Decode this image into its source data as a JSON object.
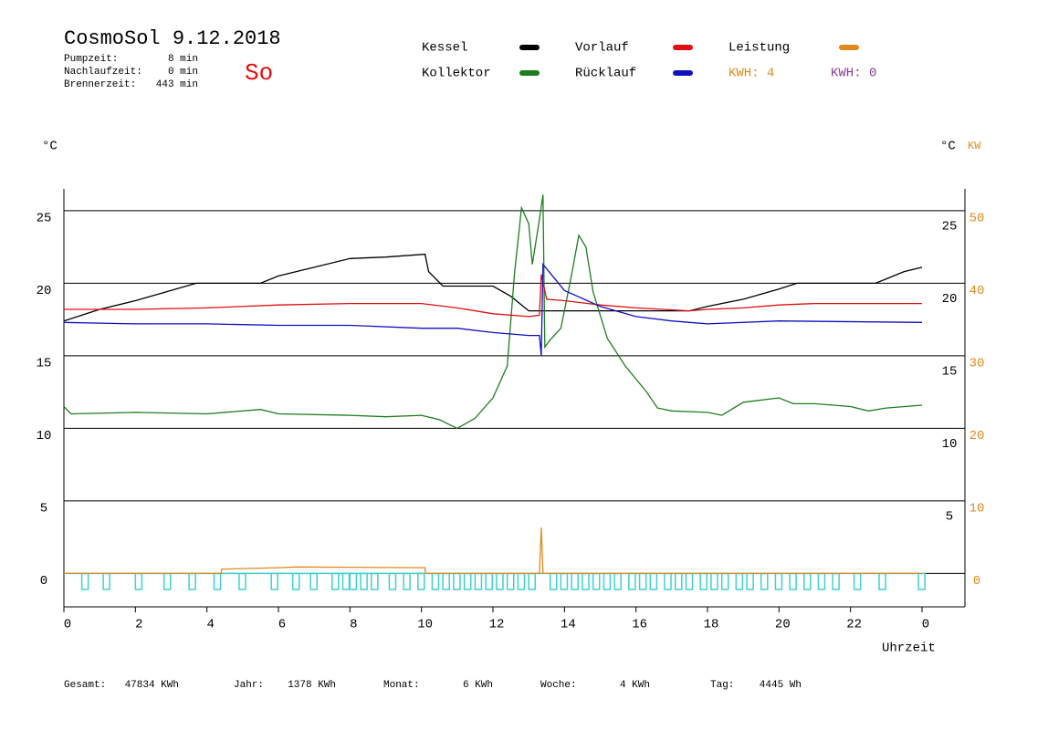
{
  "chart_data": {
    "type": "line",
    "title": "CosmoSol 9.12.2018",
    "weekday": "So",
    "stats": [
      [
        "Pumpzeit:",
        "8 min"
      ],
      [
        "Nachlaufzeit:",
        "0 min"
      ],
      [
        "Brennerzeit:",
        "443 min"
      ]
    ],
    "kwh_labels": [
      {
        "text": "KWH: 4",
        "color": "#e08a1e"
      },
      {
        "text": "KWH: 0",
        "color": "#8b3a9e"
      }
    ],
    "y_label": "°C",
    "y_right_label": "°C",
    "y2_label": "KW",
    "x_label": "Uhrzeit",
    "xlim": [
      0,
      25.2
    ],
    "xticks": [
      0,
      2,
      4,
      6,
      8,
      10,
      12,
      14,
      16,
      18,
      20,
      22,
      {
        "value": 24,
        "label": "0"
      }
    ],
    "ylim": [
      -2.3,
      26.5
    ],
    "yticks": [
      0,
      5,
      10,
      15,
      20,
      25
    ],
    "y_right_ticks": [
      5,
      10,
      15,
      20,
      25
    ],
    "y2lim": [
      -4.6,
      53
    ],
    "y2ticks": [
      0,
      10,
      20,
      30,
      40,
      50
    ],
    "grid": true,
    "series": [
      {
        "name": "Kessel",
        "color": "#000000",
        "x": [
          0,
          1,
          2,
          3,
          3.7,
          5.5,
          6,
          7,
          8,
          9,
          10.1,
          10.2,
          10.6,
          12,
          12.5,
          13,
          13.5,
          17.5,
          18,
          19,
          20,
          20.5,
          22.7,
          23,
          23.5,
          24
        ],
        "values": [
          17.4,
          18.2,
          18.8,
          19.5,
          20,
          20,
          20.5,
          21.1,
          21.7,
          21.8,
          22,
          20.8,
          19.8,
          19.8,
          19.1,
          18.1,
          18.1,
          18.1,
          18.4,
          18.9,
          19.6,
          20,
          20,
          20.3,
          20.8,
          21.1
        ]
      },
      {
        "name": "Kollektor",
        "color": "#1e7d1e",
        "x": [
          0,
          0.2,
          2,
          4,
          5.5,
          6,
          8,
          9,
          10,
          10.5,
          11,
          11.5,
          12,
          12.4,
          12.6,
          12.8,
          13,
          13.1,
          13.3,
          13.4,
          13.45,
          13.6,
          13.9,
          14.2,
          14.4,
          14.6,
          14.8,
          15.2,
          15.7,
          16.3,
          16.6,
          17,
          18,
          18.4,
          19,
          20,
          20.4,
          21,
          22,
          22.5,
          23,
          24
        ],
        "values": [
          11.5,
          11,
          11.1,
          11,
          11.3,
          11,
          10.9,
          10.8,
          10.9,
          10.6,
          10,
          10.7,
          12.1,
          14.3,
          20.6,
          25.2,
          24.1,
          21.3,
          24.4,
          26.1,
          15.6,
          16.1,
          16.9,
          20.6,
          23.3,
          22.5,
          19.4,
          16.2,
          14.3,
          12.5,
          11.4,
          11.2,
          11.1,
          10.9,
          11.8,
          12.1,
          11.7,
          11.7,
          11.5,
          11.2,
          11.4,
          11.6
        ]
      },
      {
        "name": "Vorlauf",
        "color": "#e01010",
        "x": [
          0,
          2,
          4,
          6,
          8,
          10,
          11,
          12,
          13,
          13.3,
          13.35,
          13.5,
          14,
          15,
          16,
          17.5,
          18,
          19,
          20,
          21,
          24
        ],
        "values": [
          18.2,
          18.2,
          18.3,
          18.5,
          18.6,
          18.6,
          18.3,
          17.9,
          17.7,
          17.8,
          20.6,
          18.9,
          18.8,
          18.5,
          18.3,
          18.1,
          18.2,
          18.3,
          18.5,
          18.6,
          18.6
        ]
      },
      {
        "name": "Rücklauf",
        "color": "#1010c0",
        "x": [
          0,
          2,
          4,
          6,
          8,
          10,
          11,
          12,
          13,
          13.3,
          13.35,
          13.4,
          14,
          15,
          16,
          17,
          18,
          20,
          24
        ],
        "values": [
          17.3,
          17.2,
          17.2,
          17.1,
          17.1,
          16.9,
          16.9,
          16.6,
          16.4,
          16.4,
          15,
          21.3,
          19.5,
          18.4,
          17.7,
          17.4,
          17.2,
          17.4,
          17.3
        ]
      },
      {
        "name": "Leistung",
        "color": "#e08a1e",
        "axis": "y2",
        "x": [
          0,
          4.4,
          4.41,
          6,
          6.5,
          10.1,
          10.11,
          13.3,
          13.35,
          13.4,
          24
        ],
        "values": [
          0,
          0,
          0.6,
          0.8,
          0.9,
          0.8,
          0,
          0,
          6.3,
          0,
          0
        ]
      }
    ],
    "pump": {
      "color": "#40d0d0",
      "depth": -1.1,
      "width": 0.18,
      "x": [
        0.5,
        1.1,
        2.0,
        2.8,
        3.5,
        4.2,
        4.9,
        5.8,
        6.4,
        6.9,
        7.5,
        7.8,
        8.0,
        8.3,
        8.6,
        9.1,
        9.5,
        9.9,
        10.3,
        10.6,
        10.9,
        11.2,
        11.5,
        11.8,
        12.1,
        12.4,
        12.7,
        13.0,
        13.6,
        13.9,
        14.2,
        14.5,
        14.8,
        15.1,
        15.4,
        15.8,
        16.1,
        16.4,
        16.8,
        17.1,
        17.4,
        17.8,
        18.1,
        18.4,
        18.8,
        19.1,
        19.5,
        19.9,
        20.3,
        20.7,
        21.1,
        21.5,
        22.1,
        22.8,
        23.9
      ]
    },
    "footer": [
      [
        "Gesamt:",
        "47834 KWh"
      ],
      [
        "Jahr:",
        "1378 KWh"
      ],
      [
        "Monat:",
        "6 KWh"
      ],
      [
        "Woche:",
        "4 KWh"
      ],
      [
        "Tag:",
        "4445 Wh"
      ]
    ]
  }
}
